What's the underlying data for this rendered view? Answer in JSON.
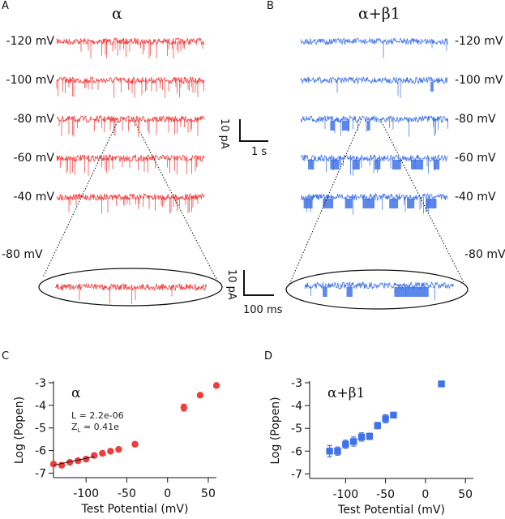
{
  "colors": {
    "alpha": "#f23b3b",
    "alpha_beta1": "#3f72e8",
    "ink": "#111111"
  },
  "panel_a": {
    "letter": "A",
    "title": "α",
    "traces": [
      "-120 mV",
      "-100 mV",
      "-80 mV",
      "-60 mV",
      "-40 mV"
    ],
    "zoom_label": "-80 mV",
    "scalebar": {
      "current": "10 pA",
      "time": "1 s"
    },
    "zoom_scalebar": {
      "current": "10 pA",
      "time": "100 ms"
    }
  },
  "panel_b": {
    "letter": "B",
    "title": "α+β1",
    "traces": [
      "-120 mV",
      "-100 mV",
      "-80 mV",
      "-60 mV",
      "-40 mV"
    ],
    "zoom_label": "-80 mV"
  },
  "chart_data": [
    {
      "panel": "C",
      "type": "scatter",
      "title": "α",
      "annotation": {
        "L": "L = 2.2e-06",
        "ZL_prefix": "Z",
        "ZL_sub": "L",
        "ZL_rest": " = 0.41e"
      },
      "xlabel": "Test Potential (mV)",
      "ylabel": "Log (Popen)",
      "xlim": [
        -140,
        60
      ],
      "ylim": [
        -7.2,
        -3
      ],
      "xticks": [
        -100,
        -50,
        0,
        50
      ],
      "yticks": [
        -3,
        -4,
        -5,
        -6,
        -7
      ],
      "marker": "circle",
      "color": "#f23b3b",
      "points": [
        {
          "x": -140,
          "y": -6.6,
          "err": 0.08
        },
        {
          "x": -130,
          "y": -6.65,
          "err": 0.08
        },
        {
          "x": -120,
          "y": -6.52,
          "err": 0.08
        },
        {
          "x": -110,
          "y": -6.45,
          "err": 0.08
        },
        {
          "x": -100,
          "y": -6.38,
          "err": 0.1
        },
        {
          "x": -90,
          "y": -6.22,
          "err": 0.1
        },
        {
          "x": -80,
          "y": -6.12,
          "err": 0.08
        },
        {
          "x": -70,
          "y": -6.03,
          "err": 0.08
        },
        {
          "x": -60,
          "y": -5.95,
          "err": 0.08
        },
        {
          "x": -40,
          "y": -5.72,
          "err": 0.06
        },
        {
          "x": 20,
          "y": -4.1,
          "err": 0.15
        },
        {
          "x": 40,
          "y": -3.55,
          "err": 0.08
        },
        {
          "x": 60,
          "y": -3.12,
          "err": 0.05
        }
      ],
      "fit_line": {
        "x": [
          -140,
          -90
        ],
        "y": [
          -6.65,
          -6.27
        ]
      }
    },
    {
      "panel": "D",
      "type": "scatter",
      "title": "α+β1",
      "xlabel": "Test Potential (mV)",
      "ylabel": "Log (Popen)",
      "xlim": [
        -145,
        60
      ],
      "ylim": [
        -7.2,
        -3
      ],
      "xticks": [
        -100,
        -50,
        0,
        50
      ],
      "yticks": [
        -3,
        -4,
        -5,
        -6,
        -7
      ],
      "marker": "square",
      "color": "#3f72e8",
      "points": [
        {
          "x": -120,
          "y": -6.0,
          "err": 0.25
        },
        {
          "x": -110,
          "y": -6.0,
          "err": 0.18
        },
        {
          "x": -100,
          "y": -5.7,
          "err": 0.18
        },
        {
          "x": -90,
          "y": -5.58,
          "err": 0.2
        },
        {
          "x": -80,
          "y": -5.38,
          "err": 0.18
        },
        {
          "x": -70,
          "y": -5.35,
          "err": 0.14
        },
        {
          "x": -60,
          "y": -4.88,
          "err": 0.14
        },
        {
          "x": -50,
          "y": -4.58,
          "err": 0.18
        },
        {
          "x": -40,
          "y": -4.42,
          "err": 0.1
        },
        {
          "x": 20,
          "y": -3.05,
          "err": 0.0
        }
      ]
    }
  ]
}
